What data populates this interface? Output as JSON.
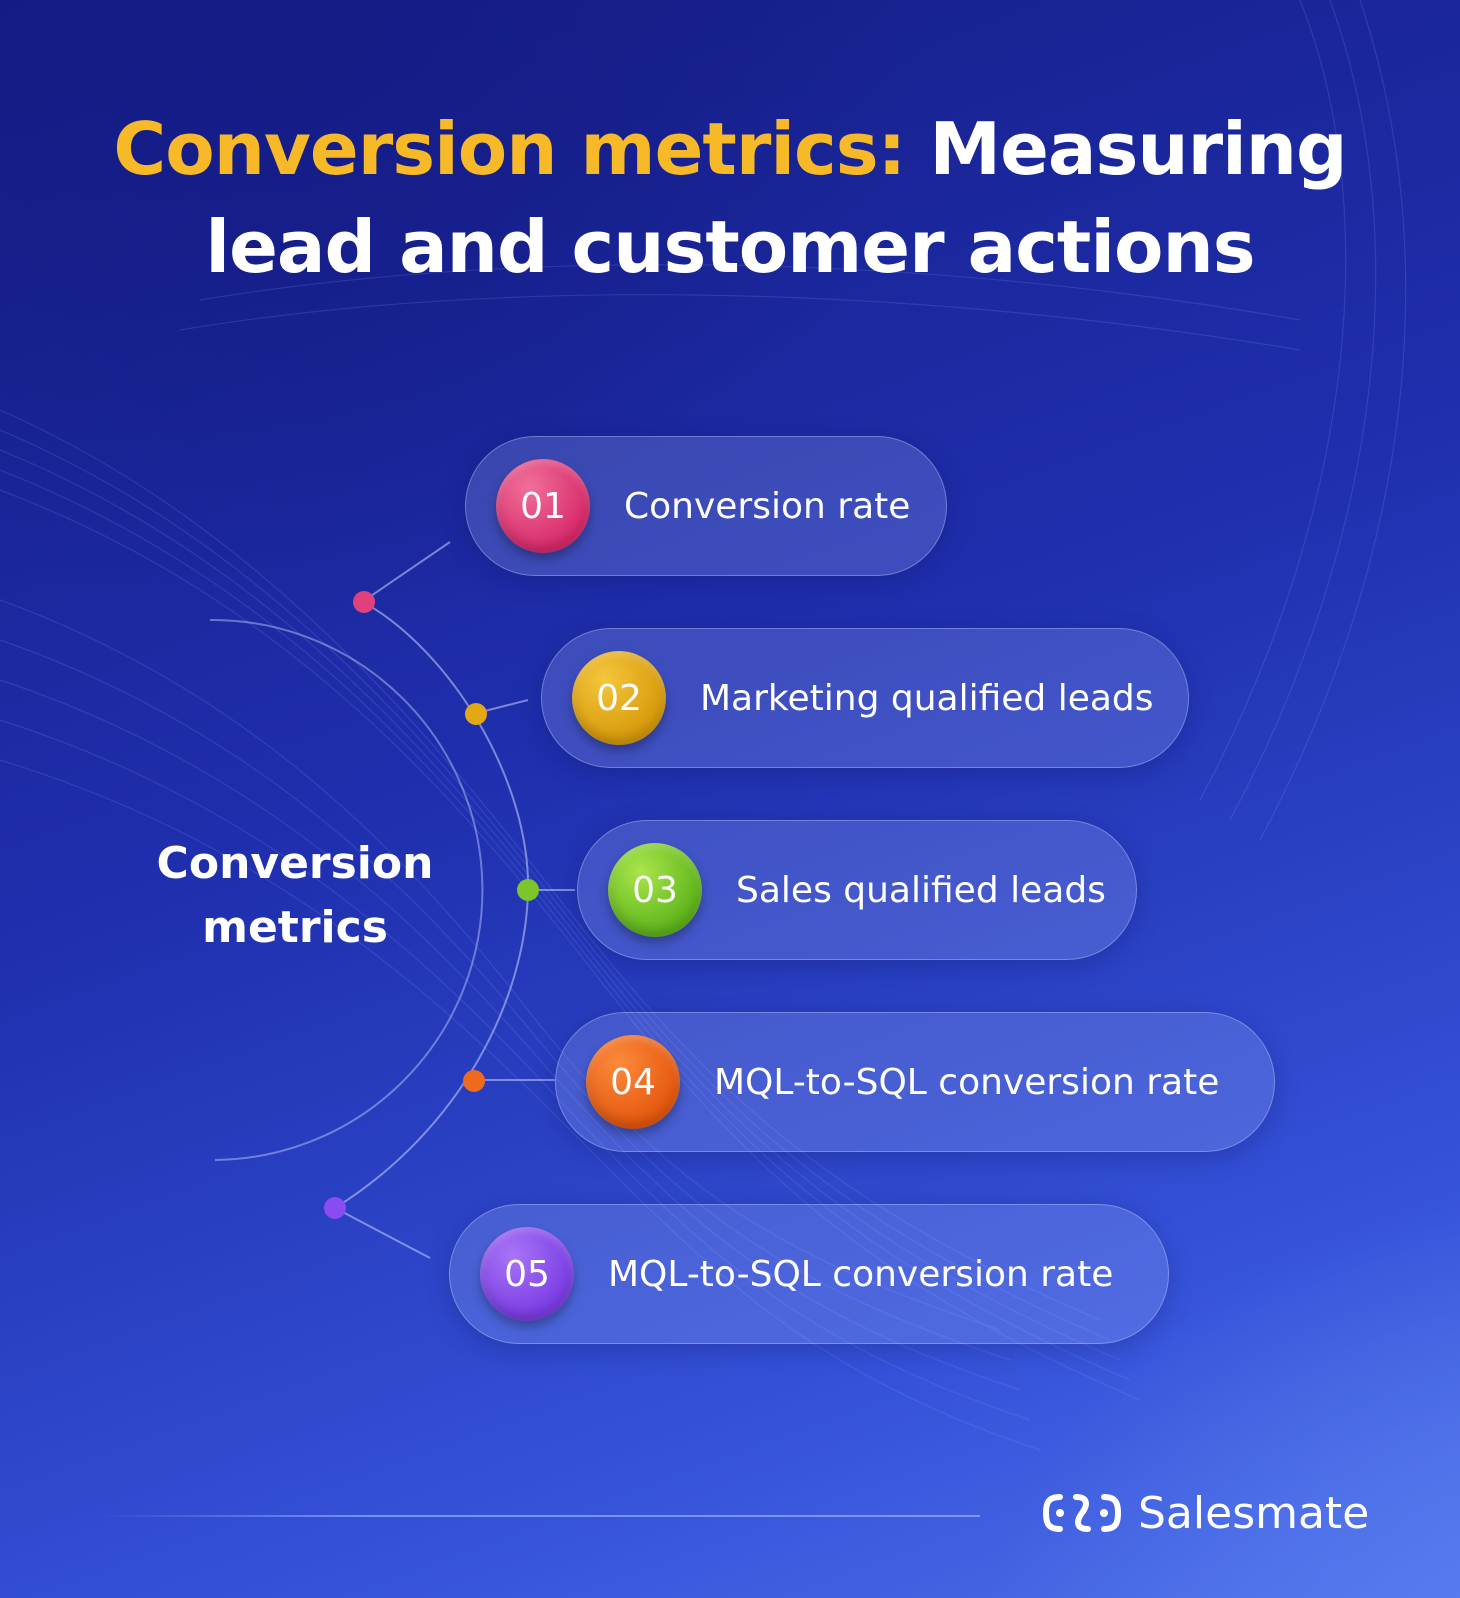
{
  "title": {
    "highlight": "Conversion metrics:",
    "rest": "Measuring lead and customer actions"
  },
  "center_label": {
    "line1": "Conversion",
    "line2": "metrics"
  },
  "items": [
    {
      "number": "01",
      "label": "Conversion rate",
      "color": "#e0407c"
    },
    {
      "number": "02",
      "label": "Marketing qualified leads",
      "color": "#e3a812"
    },
    {
      "number": "03",
      "label": "Sales qualified leads",
      "color": "#7cc62a"
    },
    {
      "number": "04",
      "label": "MQL-to-SQL conversion rate",
      "color": "#ee6a1c"
    },
    {
      "number": "05",
      "label": "MQL-to-SQL conversion rate",
      "color": "#8a4cf0"
    }
  ],
  "brand": {
    "name": "Salesmate",
    "icon": "salesmate-logo-icon"
  },
  "colors": {
    "accent": "#f7b928",
    "background_start": "#141b82",
    "background_end": "#4d6fea"
  }
}
